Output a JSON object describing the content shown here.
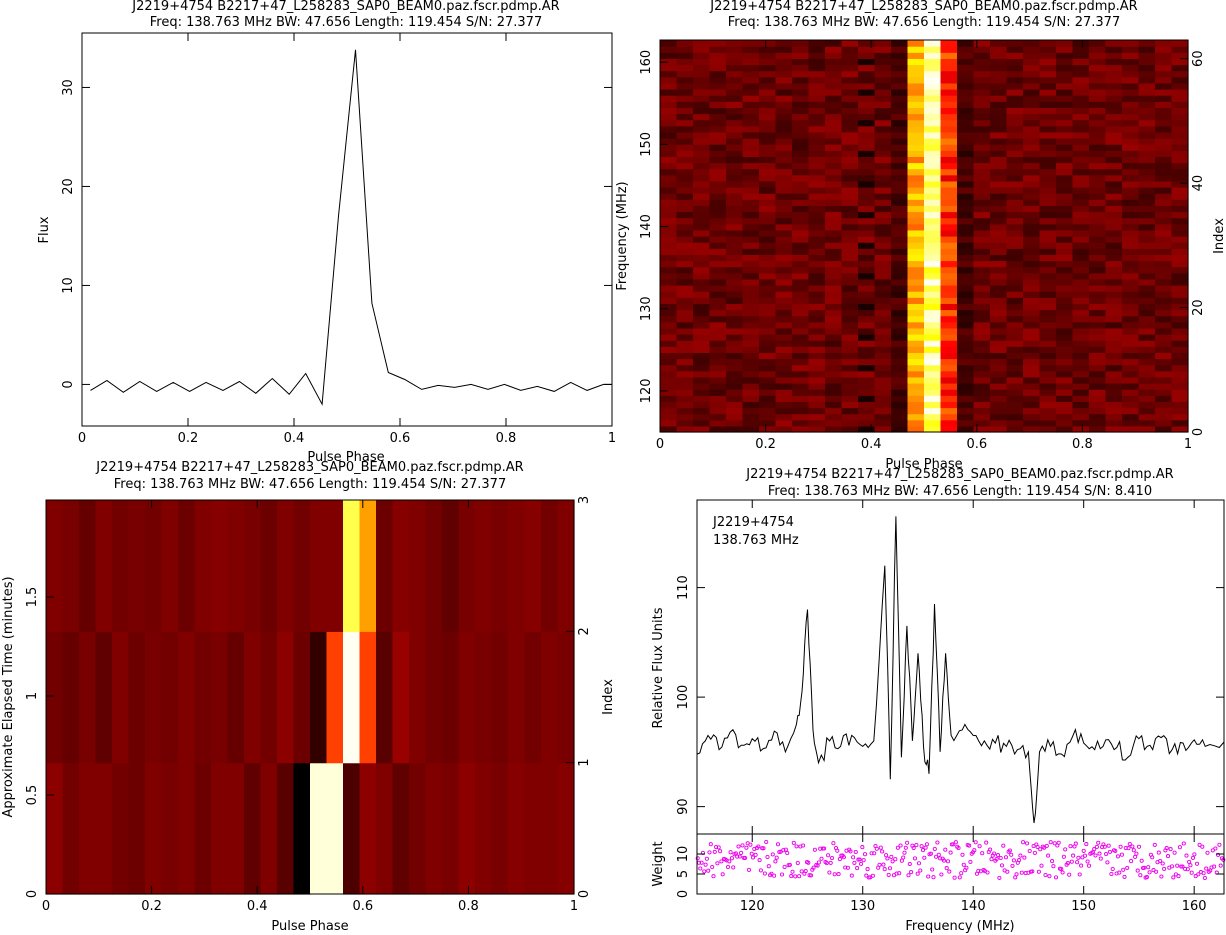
{
  "panels": {
    "profile": {
      "title1": "J2219+4754  B2217+47_L258283_SAP0_BEAM0.paz.fscr.pdmp.AR",
      "title2": "Freq: 138.763 MHz BW: 47.656 Length: 119.454 S/N: 27.377",
      "xlabel": "Pulse Phase",
      "ylabel": "Flux"
    },
    "freqphase": {
      "title1": "J2219+4754  B2217+47_L258283_SAP0_BEAM0.paz.fscr.pdmp.AR",
      "title2": "Freq: 138.763 MHz BW: 47.656 Length: 119.454 S/N: 27.377",
      "xlabel": "Pulse Phase",
      "ylabel": "Frequency (MHz)",
      "ylabel_right": "Index"
    },
    "timephase": {
      "title1": "J2219+4754  B2217+47_L258283_SAP0_BEAM0.paz.fscr.pdmp.AR",
      "title2": "Freq: 138.763 MHz BW: 47.656 Length: 119.454 S/N: 27.377",
      "xlabel": "Pulse Phase",
      "ylabel": "Approximate Elapsed Time (minutes)",
      "ylabel_right": "Index"
    },
    "bandpass": {
      "title1": "J2219+4754  B2217+47_L258283_SAP0_BEAM0.paz.fscr.pdmp.AR",
      "title2": "Freq: 138.763 MHz BW: 47.656 Length: 119.454 S/N: 8.410",
      "xlabel": "Frequency (MHz)",
      "ylabel": "Relative Flux Units",
      "ylabel_weight": "Weight",
      "annot1": "J2219+4754",
      "annot2": "138.763 MHz"
    }
  },
  "colors": {
    "line": "#000000",
    "weights": "#ee00ee"
  },
  "chart_data": [
    {
      "type": "line",
      "x": [
        0.016,
        0.047,
        0.078,
        0.109,
        0.141,
        0.172,
        0.203,
        0.234,
        0.266,
        0.297,
        0.328,
        0.359,
        0.391,
        0.422,
        0.453,
        0.484,
        0.516,
        0.547,
        0.578,
        0.609,
        0.641,
        0.672,
        0.703,
        0.734,
        0.766,
        0.797,
        0.828,
        0.859,
        0.891,
        0.922,
        0.953,
        0.984,
        1.0
      ],
      "y": [
        -0.6,
        0.4,
        -0.8,
        0.3,
        -0.7,
        0.2,
        -0.7,
        0.2,
        -0.6,
        0.3,
        -0.9,
        0.6,
        -1.0,
        1.1,
        -2.0,
        17,
        33.8,
        8.2,
        1.2,
        0.5,
        -0.5,
        -0.1,
        -0.3,
        0.0,
        -0.5,
        0.0,
        -0.6,
        -0.2,
        -0.7,
        0.2,
        -0.6,
        0.0,
        0.0
      ],
      "xlim": [
        0,
        1
      ],
      "ylim": [
        -4.2,
        35.5
      ],
      "xticks": [
        0,
        0.2,
        0.4,
        0.6,
        0.8,
        1
      ],
      "yticks": [
        0,
        10,
        20,
        30
      ],
      "xlabel": "Pulse Phase",
      "ylabel": "Flux"
    },
    {
      "type": "heatmap",
      "nphase": 32,
      "nchan": 64,
      "xlim": [
        0,
        1
      ],
      "ylim": [
        115,
        162.7
      ],
      "xticks": [
        0,
        0.2,
        0.4,
        0.6,
        0.8,
        1
      ],
      "yticks": [
        120,
        130,
        140,
        150,
        160
      ],
      "right_axis_ylim": [
        0,
        63
      ],
      "right_axis_ticks": [
        0,
        20,
        40,
        60
      ],
      "pulse_bins": [
        15,
        16,
        17
      ],
      "xlabel": "Pulse Phase",
      "ylabel": "Frequency (MHz)",
      "ylabel_right": "Index"
    },
    {
      "type": "heatmap",
      "nphase": 32,
      "nsub": 3,
      "xlim": [
        0,
        1
      ],
      "ylim": [
        0,
        1.99
      ],
      "xticks": [
        0,
        0.2,
        0.4,
        0.6,
        0.8,
        1
      ],
      "yticks": [
        0,
        0.5,
        1,
        1.5
      ],
      "right_axis_ylim": [
        0,
        3
      ],
      "right_axis_ticks": [
        0,
        1,
        2,
        3
      ],
      "intensity": [
        [
          0.22,
          0.18,
          0.2,
          0.2,
          0.18,
          0.17,
          0.2,
          0.19,
          0.2,
          0.17,
          0.2,
          0.2,
          0.15,
          0.2,
          0.14,
          0.0,
          0.97,
          0.97,
          0.12,
          0.22,
          0.2,
          0.15,
          0.18,
          0.2,
          0.19,
          0.22,
          0.2,
          0.19,
          0.21,
          0.2,
          0.2,
          0.21
        ],
        [
          0.18,
          0.16,
          0.19,
          0.15,
          0.2,
          0.17,
          0.19,
          0.18,
          0.2,
          0.18,
          0.19,
          0.16,
          0.2,
          0.18,
          0.22,
          0.17,
          0.08,
          0.5,
          0.99,
          0.5,
          0.14,
          0.24,
          0.2,
          0.18,
          0.17,
          0.2,
          0.19,
          0.18,
          0.2,
          0.18,
          0.2,
          0.19
        ],
        [
          0.2,
          0.19,
          0.16,
          0.2,
          0.18,
          0.19,
          0.18,
          0.2,
          0.17,
          0.2,
          0.21,
          0.2,
          0.19,
          0.17,
          0.2,
          0.18,
          0.2,
          0.2,
          0.86,
          0.65,
          0.17,
          0.21,
          0.2,
          0.18,
          0.15,
          0.19,
          0.2,
          0.19,
          0.2,
          0.21,
          0.18,
          0.2
        ]
      ],
      "xlabel": "Pulse Phase",
      "ylabel": "Approximate Elapsed Time (minutes)",
      "ylabel_right": "Index"
    },
    {
      "type": "line",
      "x": [
        115,
        116,
        117,
        118,
        119,
        120,
        121,
        122,
        123,
        124,
        124.5,
        125,
        125.5,
        126,
        127,
        128,
        129,
        130,
        131,
        132,
        132.5,
        133,
        133.5,
        134,
        134.5,
        135,
        135.5,
        136,
        136.5,
        137,
        137.5,
        138,
        139,
        140,
        141,
        142,
        143,
        144,
        145,
        145.5,
        146,
        147,
        148,
        149,
        150,
        151,
        152,
        153,
        154,
        155,
        156,
        157,
        158,
        159,
        160,
        161,
        162.7
      ],
      "y": [
        94.8,
        96.5,
        95.2,
        96.8,
        95.6,
        96.2,
        95.3,
        96.9,
        95.0,
        97.5,
        100.5,
        108,
        97,
        94,
        96,
        95.5,
        96.5,
        95.5,
        96,
        112,
        92.5,
        116.5,
        94.5,
        106.5,
        96,
        104,
        95.5,
        93,
        108.5,
        95,
        104,
        96.5,
        97,
        96.5,
        96,
        95.8,
        95.5,
        95.2,
        95,
        88.5,
        95,
        95.5,
        94.8,
        96.4,
        95.8,
        95.2,
        96.1,
        95.4,
        94.5,
        96.2,
        95.6,
        96.3,
        95.2,
        95.8,
        96.1,
        95.5,
        95.9
      ],
      "xlim": [
        115,
        162.7
      ],
      "ylim": [
        87.5,
        118
      ],
      "xticks": [
        120,
        130,
        140,
        150,
        160
      ],
      "yticks": [
        90,
        100,
        110
      ],
      "xlabel": "Frequency (MHz)",
      "ylabel": "Relative Flux Units"
    },
    {
      "type": "scatter",
      "xlim": [
        115,
        162.7
      ],
      "ylim": [
        0,
        15
      ],
      "yticks": [
        0,
        5,
        10
      ],
      "npoints": 400,
      "ylabel": "Weight"
    }
  ]
}
